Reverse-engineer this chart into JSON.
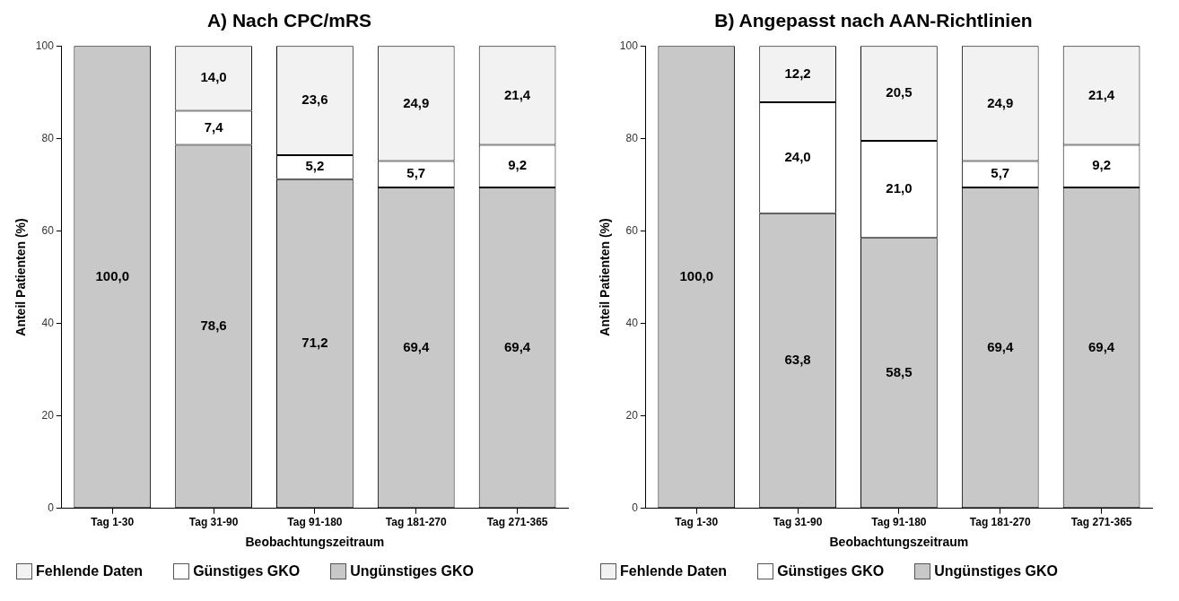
{
  "chart_data": [
    {
      "type": "bar",
      "title": "A) Nach CPC/mRS",
      "xlabel": "Beobachtungszeitraum",
      "ylabel": "Anteil Patienten (%)",
      "categories": [
        "Tag 1-30",
        "Tag 31-90",
        "Tag 91-180",
        "Tag 181-270",
        "Tag 271-365"
      ],
      "stacked": true,
      "ylim": [
        0,
        100
      ],
      "yticks": [
        0,
        20,
        40,
        60,
        80,
        100
      ],
      "grid": false,
      "legend": "bottom",
      "series": [
        {
          "name": "Ungünstiges GKO",
          "color": "#c8c8c8",
          "values": [
            100,
            78.6,
            71.2,
            69.4,
            69.4
          ],
          "value_labels": [
            "100,0",
            "78,6",
            "71,2",
            "69,4",
            "69,4"
          ]
        },
        {
          "name": "Günstiges GKO",
          "color": "#ffffff",
          "values": [
            null,
            7.4,
            5.2,
            5.7,
            9.2
          ],
          "value_labels": [
            null,
            "7,4",
            "5,2",
            "5,7",
            "9,2"
          ]
        },
        {
          "name": "Fehlende Daten",
          "color": "#f2f2f2",
          "values": [
            null,
            14.0,
            23.6,
            24.9,
            21.4
          ],
          "value_labels": [
            null,
            "14,0",
            "23,6",
            "24,9",
            "21,4"
          ]
        }
      ]
    },
    {
      "type": "bar",
      "title": "B) Angepasst nach AAN-Richtlinien",
      "xlabel": "Beobachtungszeitraum",
      "ylabel": "Anteil Patienten (%)",
      "categories": [
        "Tag 1-30",
        "Tag 31-90",
        "Tag 91-180",
        "Tag 181-270",
        "Tag 271-365"
      ],
      "stacked": true,
      "ylim": [
        0,
        100
      ],
      "yticks": [
        0,
        20,
        40,
        60,
        80,
        100
      ],
      "grid": false,
      "legend": "bottom",
      "series": [
        {
          "name": "Ungünstiges GKO",
          "color": "#c8c8c8",
          "values": [
            100,
            63.8,
            58.5,
            69.4,
            69.4
          ],
          "value_labels": [
            "100,0",
            "63,8",
            "58,5",
            "69,4",
            "69,4"
          ]
        },
        {
          "name": "Günstiges GKO",
          "color": "#ffffff",
          "values": [
            null,
            24.0,
            21.0,
            5.7,
            9.2
          ],
          "value_labels": [
            null,
            "24,0",
            "21,0",
            "5,7",
            "9,2"
          ]
        },
        {
          "name": "Fehlende Daten",
          "color": "#f2f2f2",
          "values": [
            null,
            12.2,
            20.5,
            24.9,
            21.4
          ],
          "value_labels": [
            null,
            "12,2",
            "20,5",
            "24,9",
            "21,4"
          ]
        }
      ]
    }
  ]
}
